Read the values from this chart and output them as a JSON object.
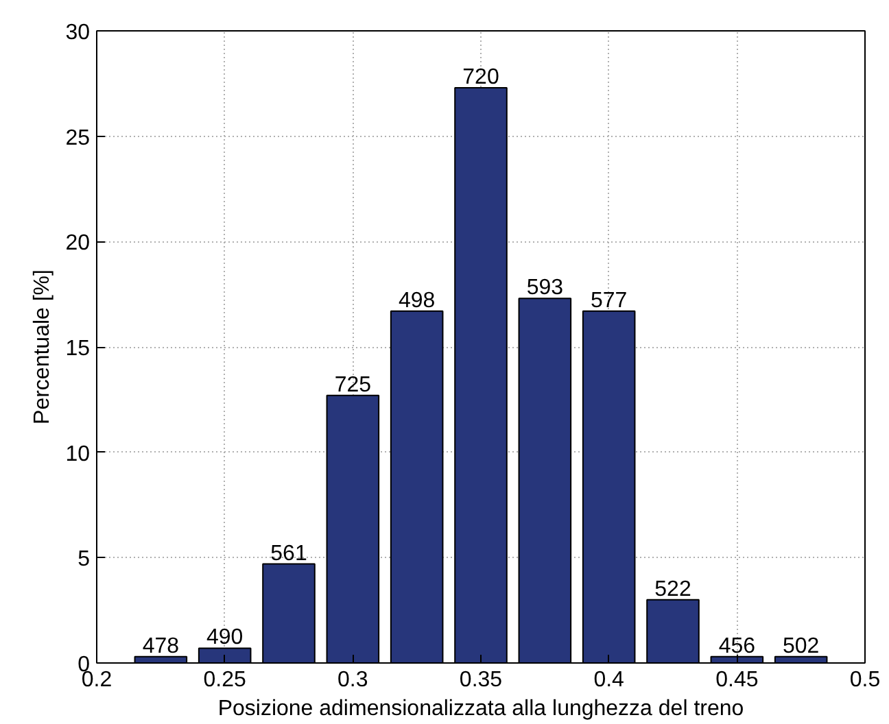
{
  "chart_data": {
    "type": "bar",
    "xlabel": "Posizione adimensionalizzata alla lunghezza del treno",
    "ylabel": "Percentuale [%]",
    "x": [
      0.225,
      0.25,
      0.275,
      0.3,
      0.325,
      0.35,
      0.375,
      0.4,
      0.425,
      0.45,
      0.475
    ],
    "values": [
      0.3,
      0.7,
      4.7,
      12.7,
      16.7,
      27.3,
      17.3,
      16.7,
      3.0,
      0.3,
      0.3
    ],
    "color": "#27367b",
    "xlim": [
      0.2,
      0.5
    ],
    "xticks": [
      0.2,
      0.25,
      0.3,
      0.35,
      0.4,
      0.45,
      0.5
    ],
    "ylim": [
      0,
      30
    ],
    "yticks": [
      0,
      5,
      10,
      15,
      20,
      25,
      30
    ],
    "grid": true,
    "annotations": [
      {
        "text": "478",
        "x": 0.225,
        "y": 0.3
      },
      {
        "text": "490",
        "x": 0.25,
        "y": 0.7
      },
      {
        "text": "561",
        "x": 0.275,
        "y": 4.7
      },
      {
        "text": "725",
        "x": 0.3,
        "y": 12.7
      },
      {
        "text": "498",
        "x": 0.325,
        "y": 16.7
      },
      {
        "text": "720",
        "x": 0.35,
        "y": 27.3
      },
      {
        "text": "593",
        "x": 0.375,
        "y": 17.3
      },
      {
        "text": "577",
        "x": 0.4,
        "y": 16.7
      },
      {
        "text": "522",
        "x": 0.425,
        "y": 3.0
      },
      {
        "text": "456",
        "x": 0.45,
        "y": 0.3
      },
      {
        "text": "502",
        "x": 0.475,
        "y": 0.3
      }
    ]
  }
}
